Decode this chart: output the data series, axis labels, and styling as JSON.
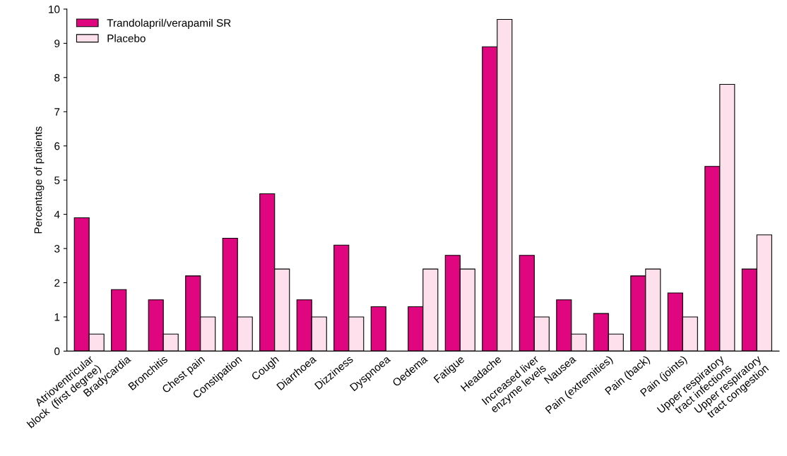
{
  "chart_data": {
    "type": "bar",
    "ylabel": "Percentage of patients",
    "categories": [
      "Atrioventricular\nblock  (first degree)",
      "Bradycardia",
      "Bronchitis",
      "Chest pain",
      "Constipation",
      "Cough",
      "Diarrhoea",
      "Dizziness",
      "Dyspnoea",
      "Oedema",
      "Fatigue",
      "Headache",
      "Increased liver\nenzyme levels",
      "Nausea",
      "Pain (extremities)",
      "Pain (back)",
      "Pain (joints)",
      "Upper respiratory\ntract infections",
      "Upper respiratory\ntract congestion"
    ],
    "series": [
      {
        "name": "Trandolapril/verapamil SR",
        "color": "#e0067f",
        "values": [
          3.9,
          1.8,
          1.5,
          2.2,
          3.3,
          4.6,
          1.5,
          3.1,
          1.3,
          1.3,
          2.8,
          8.9,
          2.8,
          1.5,
          1.1,
          2.2,
          1.7,
          5.4,
          2.4
        ]
      },
      {
        "name": "Placebo",
        "color": "#fde0ec",
        "values": [
          0.5,
          null,
          0.5,
          1.0,
          1.0,
          2.4,
          1.0,
          1.0,
          null,
          2.4,
          2.4,
          9.7,
          1.0,
          0.5,
          0.5,
          2.4,
          1.0,
          7.8,
          3.4
        ]
      }
    ],
    "ylim": [
      0,
      10
    ],
    "yticks": [
      0,
      1,
      2,
      3,
      4,
      5,
      6,
      7,
      8,
      9,
      10
    ],
    "legend": "top left",
    "grid": false
  }
}
